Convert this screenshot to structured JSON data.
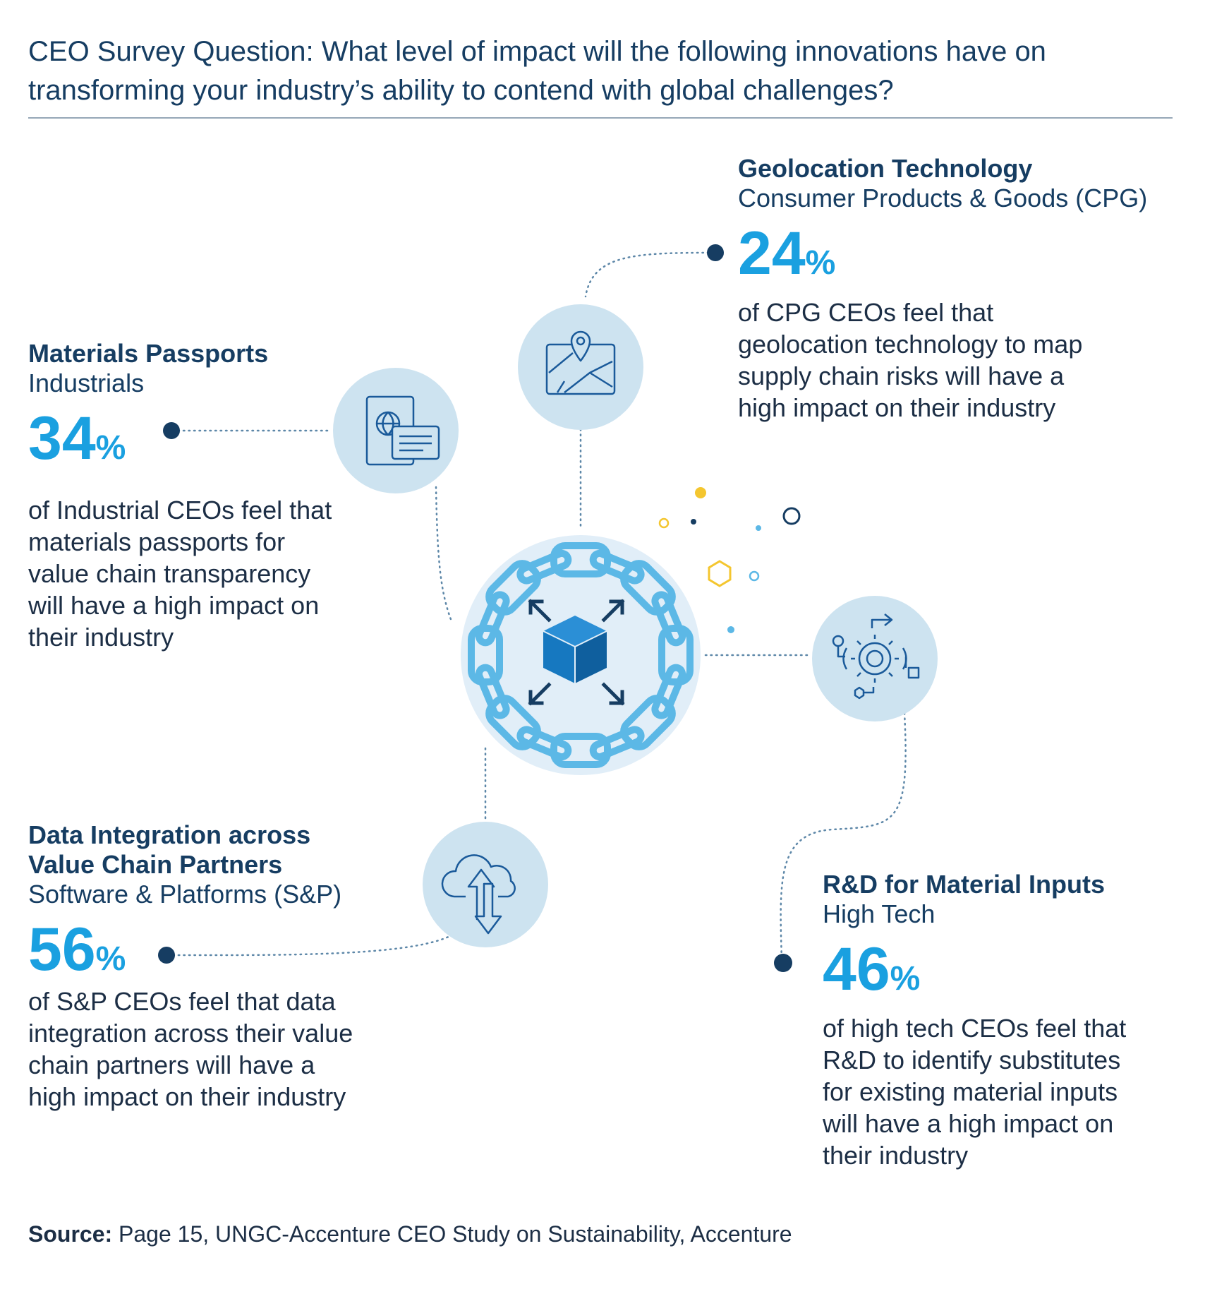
{
  "header": {
    "question_line1": "CEO Survey Question: What level of impact will the following innovations have on",
    "question_line2": "transforming your industry’s ability to contend with global challenges?"
  },
  "items": [
    {
      "title": "Geolocation Technology",
      "subtitle": "Consumer Products & Goods (CPG)",
      "percent_value": "24",
      "percent_symbol": "%",
      "description": [
        "of CPG CEOs feel that",
        "geolocation technology to map",
        "supply chain risks will have a",
        "high impact on their industry"
      ],
      "icon": "map-pin-icon"
    },
    {
      "title": "Materials Passports",
      "subtitle": "Industrials",
      "percent_value": "34",
      "percent_symbol": "%",
      "description": [
        "of Industrial CEOs feel that",
        "materials passports for",
        "value chain transparency",
        "will have a high impact on",
        "their industry"
      ],
      "icon": "passport-document-icon"
    },
    {
      "title_lines": [
        "Data Integration across",
        "Value Chain Partners"
      ],
      "subtitle": "Software & Platforms (S&P)",
      "percent_value": "56",
      "percent_symbol": "%",
      "description": [
        "of S&P CEOs feel that data",
        "integration across their value",
        "chain partners will have a",
        "high impact on their industry"
      ],
      "icon": "cloud-sync-icon"
    },
    {
      "title": "R&D for Material Inputs",
      "subtitle": "High Tech",
      "percent_value": "46",
      "percent_symbol": "%",
      "description": [
        "of high tech CEOs feel that",
        "R&D to identify substitutes",
        "for existing material inputs",
        "will have a high impact on",
        "their industry"
      ],
      "icon": "gear-process-icon"
    }
  ],
  "center_icon": "chain-cube-icon",
  "colors": {
    "title": "#163d62",
    "accent": "#1aa0e0",
    "circle": "#cde3f0",
    "chain": "#5cb8e6",
    "cube": "#1678c0",
    "yellow": "#f4c62f"
  },
  "source": {
    "label": "Source:",
    "text": " Page 15, UNGC-Accenture CEO Study on Sustainability, Accenture"
  }
}
